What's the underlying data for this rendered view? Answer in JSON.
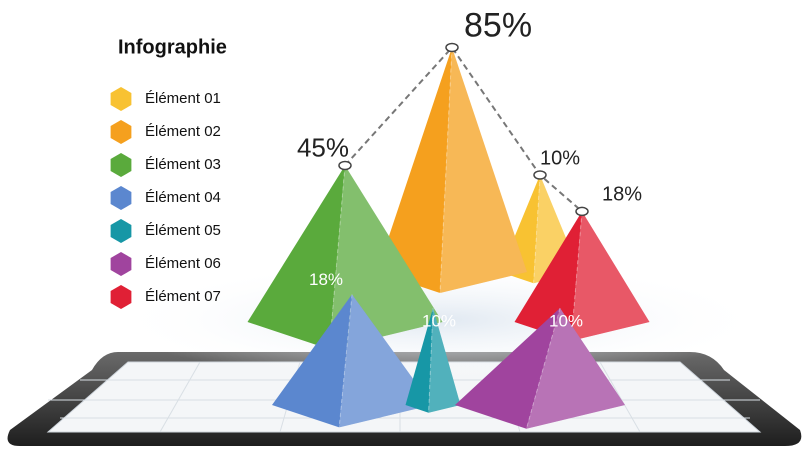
{
  "chart_data": {
    "type": "pyramid",
    "title": "Infographie",
    "categories": [
      "Élément 01",
      "Élément 02",
      "Élément 03",
      "Élément 04",
      "Élément 05",
      "Élément 06",
      "Élément 07"
    ],
    "values": [
      10,
      85,
      45,
      18,
      10,
      10,
      18
    ],
    "value_labels": [
      "10%",
      "85%",
      "45%",
      "18%",
      "10%",
      "10%",
      "18%"
    ],
    "colors": [
      "#f8c232",
      "#f5a01e",
      "#5aaa3c",
      "#5b87cf",
      "#1797a6",
      "#a0449e",
      "#e02035"
    ]
  }
}
